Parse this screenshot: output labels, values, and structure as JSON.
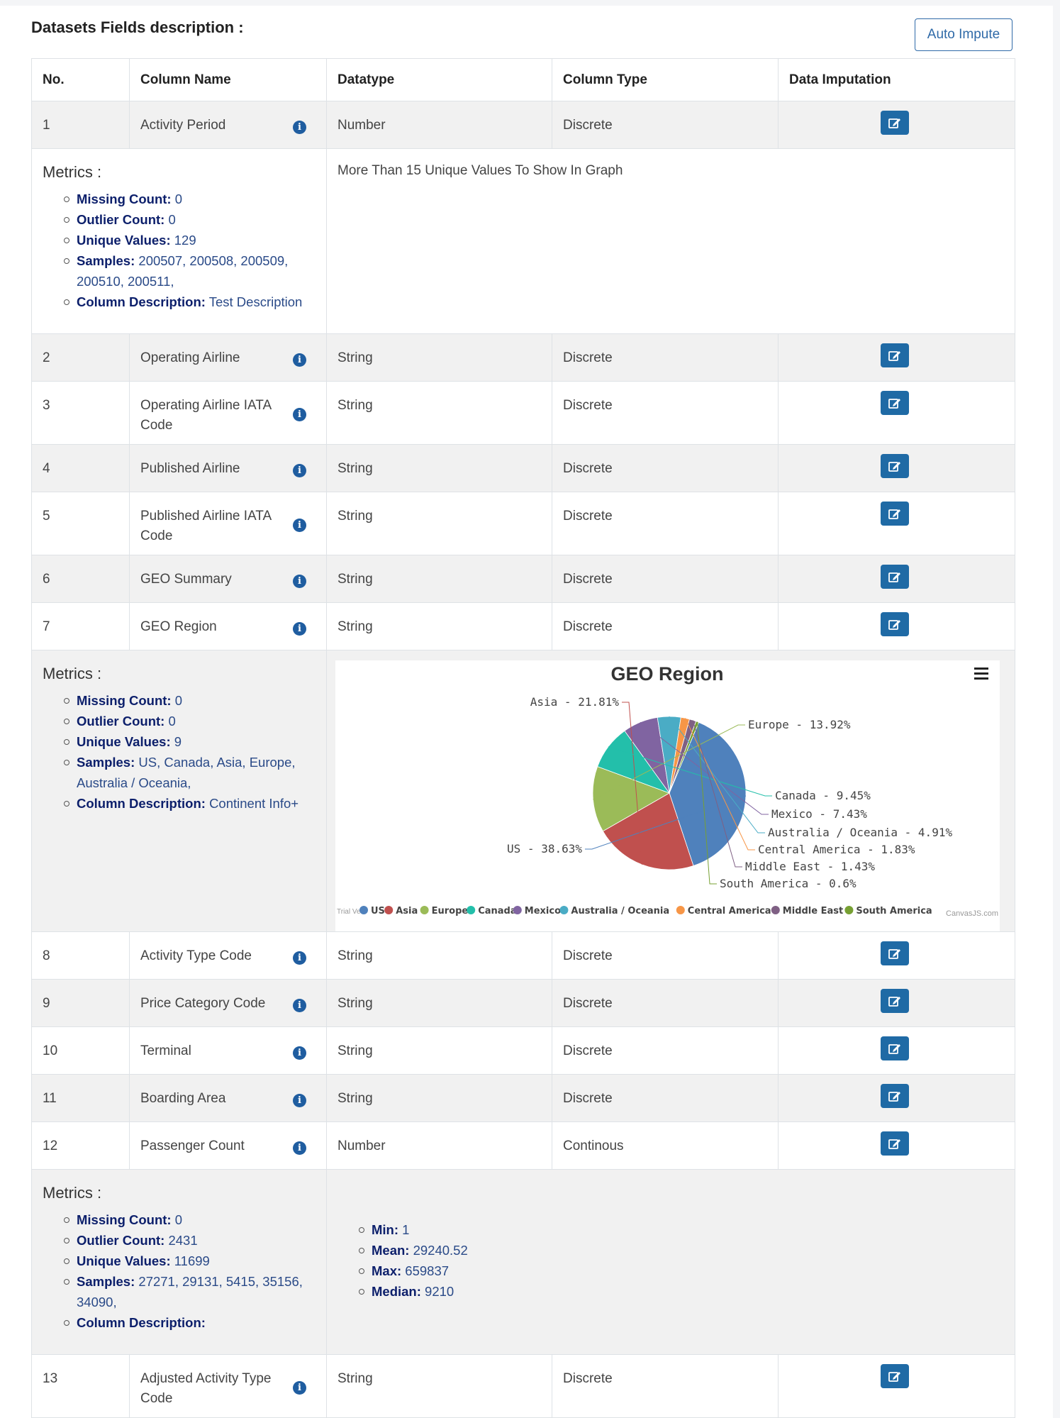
{
  "section_title": "Datasets Fields description :",
  "auto_impute_label": "Auto Impute",
  "headers": [
    "No.",
    "Column Name",
    "Datatype",
    "Column Type",
    "Data Imputation"
  ],
  "rows": [
    {
      "no": "1",
      "name": "Activity Period",
      "datatype": "Number",
      "coltype": "Discrete"
    },
    {
      "no": "2",
      "name": "Operating Airline",
      "datatype": "String",
      "coltype": "Discrete"
    },
    {
      "no": "3",
      "name": "Operating Airline IATA Code",
      "datatype": "String",
      "coltype": "Discrete"
    },
    {
      "no": "4",
      "name": "Published Airline",
      "datatype": "String",
      "coltype": "Discrete"
    },
    {
      "no": "5",
      "name": "Published Airline IATA Code",
      "datatype": "String",
      "coltype": "Discrete"
    },
    {
      "no": "6",
      "name": "GEO Summary",
      "datatype": "String",
      "coltype": "Discrete"
    },
    {
      "no": "7",
      "name": "GEO Region",
      "datatype": "String",
      "coltype": "Discrete"
    },
    {
      "no": "8",
      "name": "Activity Type Code",
      "datatype": "String",
      "coltype": "Discrete"
    },
    {
      "no": "9",
      "name": "Price Category Code",
      "datatype": "String",
      "coltype": "Discrete"
    },
    {
      "no": "10",
      "name": "Terminal",
      "datatype": "String",
      "coltype": "Discrete"
    },
    {
      "no": "11",
      "name": "Boarding Area",
      "datatype": "String",
      "coltype": "Discrete"
    },
    {
      "no": "12",
      "name": "Passenger Count",
      "datatype": "Number",
      "coltype": "Continous"
    },
    {
      "no": "13",
      "name": "Adjusted Activity Type Code",
      "datatype": "String",
      "coltype": "Discrete"
    }
  ],
  "metrics_title": "Metrics :",
  "metric_keys": {
    "missing": "Missing Count:",
    "outlier": "Outlier Count:",
    "unique": "Unique Values:",
    "samples": "Samples:",
    "description": "Column Description:",
    "min": "Min:",
    "mean": "Mean:",
    "max": "Max:",
    "median": "Median:"
  },
  "metrics1": {
    "missing": "0",
    "outlier": "0",
    "unique": "129",
    "samples": "200507, 200508, 200509, 200510, 200511,",
    "description": "Test Description",
    "note": "More Than 15 Unique Values To Show In Graph"
  },
  "metrics2": {
    "missing": "0",
    "outlier": "0",
    "unique": "9",
    "samples": "US, Canada, Asia, Europe, Australia / Oceania,",
    "description": "Continent Info+"
  },
  "metrics3": {
    "missing": "0",
    "outlier": "2431",
    "unique": "11699",
    "samples": "27271, 29131, 5415, 35156, 34090,",
    "description": "",
    "min": "1",
    "mean": "29240.52",
    "max": "659837",
    "median": "9210"
  },
  "chart_watermark_left": "Trial Ve",
  "chart_watermark_right": "CanvasJS.com",
  "chart_data": {
    "type": "pie",
    "title": "GEO Region",
    "categories": [
      "US",
      "Asia",
      "Europe",
      "Canada",
      "Mexico",
      "Australia / Oceania",
      "Central America",
      "Middle East",
      "South America"
    ],
    "values": [
      38.63,
      21.81,
      13.92,
      9.45,
      7.43,
      4.91,
      1.83,
      1.43,
      0.6
    ],
    "labels": [
      "US - 38.63%",
      "Asia - 21.81%",
      "Europe - 13.92%",
      "Canada - 9.45%",
      "Mexico - 7.43%",
      "Australia / Oceania - 4.91%",
      "Central America - 1.83%",
      "Middle East - 1.43%",
      "South America - 0.6%"
    ],
    "colors": [
      "#4f81bc",
      "#c0504e",
      "#9bbb58",
      "#23bfaa",
      "#8064a1",
      "#4aacc5",
      "#f79647",
      "#7f6084",
      "#77a033"
    ],
    "legend": [
      "US",
      "Asia",
      "Europe",
      "Canada",
      "Mexico",
      "Australia / Oceania",
      "Central America",
      "Middle East",
      "South America"
    ]
  }
}
